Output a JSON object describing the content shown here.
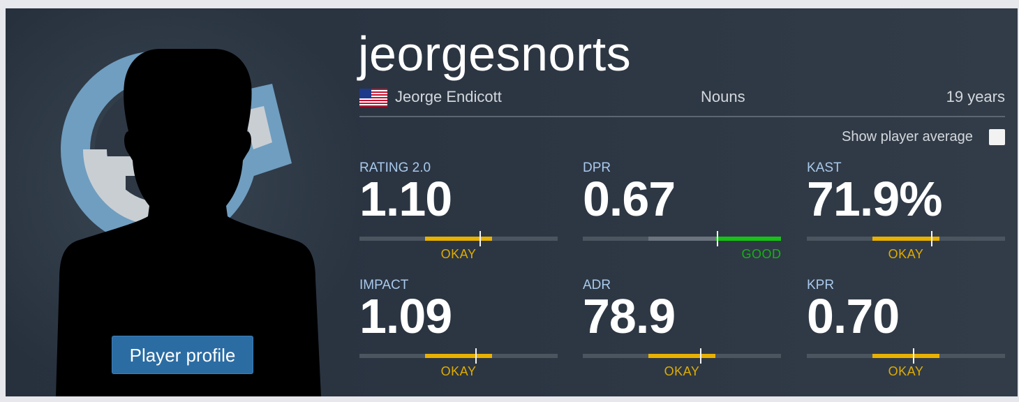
{
  "player": {
    "nickname": "jeorgesnorts",
    "real_name": "Jeorge Endicott",
    "team": "Nouns",
    "age": "19 years",
    "country_flag": "us-flag-icon"
  },
  "profile_button": {
    "label": "Player profile"
  },
  "toggle": {
    "label": "Show player average",
    "checked": false
  },
  "colors": {
    "okay": "#e8b100",
    "good": "#16c216",
    "track": "#4b5560",
    "label_blue": "#a9c9ec",
    "button": "#2b6ca3"
  },
  "stats": [
    {
      "label": "RATING 2.0",
      "value": "1.10",
      "rating": "OKAY"
    },
    {
      "label": "DPR",
      "value": "0.67",
      "rating": "GOOD"
    },
    {
      "label": "KAST",
      "value": "71.9%",
      "rating": "OKAY"
    },
    {
      "label": "IMPACT",
      "value": "1.09",
      "rating": "OKAY"
    },
    {
      "label": "ADR",
      "value": "78.9",
      "rating": "OKAY"
    },
    {
      "label": "KPR",
      "value": "0.70",
      "rating": "OKAY"
    }
  ]
}
